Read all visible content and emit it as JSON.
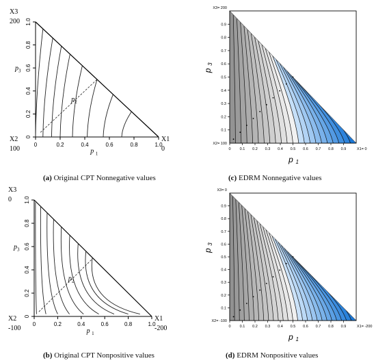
{
  "panels": [
    {
      "id": "a",
      "caption_letter": "(a)",
      "caption_text": "Original CPT Nonnegative values",
      "chart_data": {
        "type": "ternary-indifference-curves",
        "title": "",
        "xlabel": "p1",
        "ylabel": "p3",
        "xlim": [
          0,
          1
        ],
        "ylim": [
          0,
          1
        ],
        "x_ticks": [
          "0",
          "0.2",
          "0.4",
          "0.6",
          "0.8",
          "1.0"
        ],
        "y_ticks": [
          "0",
          "0.2",
          "0.4",
          "0.6",
          "0.8",
          "1.0"
        ],
        "corner_labels": {
          "top": [
            "X3",
            "200"
          ],
          "bottom_left": [
            "X2",
            "100"
          ],
          "bottom_right": [
            "X1",
            "0"
          ]
        },
        "diagonal_label": "p2",
        "curve_count": 8,
        "shading": "none"
      }
    },
    {
      "id": "b",
      "caption_letter": "(b)",
      "caption_text": "Original CPT Nonpositive values",
      "chart_data": {
        "type": "ternary-indifference-curves",
        "title": "",
        "xlabel": "p1",
        "ylabel": "p3",
        "xlim": [
          0,
          1
        ],
        "ylim": [
          0,
          1
        ],
        "x_ticks": [
          "0",
          "0.2",
          "0.4",
          "0.6",
          "0.8",
          "1.0"
        ],
        "y_ticks": [
          "0",
          "0.2",
          "0.4",
          "0.6",
          "0.8",
          "1.0"
        ],
        "corner_labels": {
          "top": [
            "X3",
            "0"
          ],
          "bottom_left": [
            "X2",
            "-100"
          ],
          "bottom_right": [
            "X1",
            "-200"
          ]
        },
        "diagonal_label": "p2",
        "curve_count": 9,
        "shading": "none"
      }
    },
    {
      "id": "c",
      "caption_letter": "(c)",
      "caption_text": "EDRM Nonnegative values",
      "chart_data": {
        "type": "ternary-contour",
        "title": "",
        "xlabel": "p1",
        "ylabel": "p3",
        "xlim": [
          0,
          1
        ],
        "ylim": [
          0,
          1
        ],
        "x_ticks": [
          "0",
          "0.1",
          "0.2",
          "0.3",
          "0.4",
          "0.5",
          "0.6",
          "0.7",
          "0.8",
          "0.9"
        ],
        "y_ticks": [
          "0.1",
          "0.2",
          "0.3",
          "0.4",
          "0.5",
          "0.6",
          "0.7",
          "0.8",
          "0.9"
        ],
        "corner_labels": {
          "top": "X3= 200",
          "bottom_left": "X2= 100",
          "bottom_right": "X1= 0"
        },
        "dotted_line": {
          "x": [
            0.03,
            0.5
          ],
          "y": [
            0.03,
            0.5
          ]
        },
        "contour_count": 22,
        "shading": "gray-to-blue",
        "colors": {
          "gray_light": "#f2f2f2",
          "gray_dark": "#8a8a8a",
          "blue_light": "#d6e9fb",
          "blue_dark": "#1a78d8"
        }
      }
    },
    {
      "id": "d",
      "caption_letter": "(d)",
      "caption_text": "EDRM Nonpositive values",
      "chart_data": {
        "type": "ternary-contour",
        "title": "",
        "xlabel": "p1",
        "ylabel": "p3",
        "xlim": [
          0,
          1
        ],
        "ylim": [
          0,
          1
        ],
        "x_ticks": [
          "0",
          "0.1",
          "0.2",
          "0.3",
          "0.4",
          "0.5",
          "0.6",
          "0.7",
          "0.8",
          "0.9"
        ],
        "y_ticks": [
          "0.1",
          "0.2",
          "0.3",
          "0.4",
          "0.5",
          "0.6",
          "0.7",
          "0.8",
          "0.9"
        ],
        "corner_labels": {
          "top": "X3= 0",
          "bottom_left": "X2= -100",
          "bottom_right": "X1= -200"
        },
        "dotted_line": {
          "x": [
            0.03,
            0.5
          ],
          "y": [
            0.03,
            0.5
          ]
        },
        "contour_count": 26,
        "shading": "gray-to-blue",
        "colors": {
          "gray_light": "#f2f2f2",
          "gray_dark": "#8a8a8a",
          "blue_light": "#d6e9fb",
          "blue_dark": "#1a78d8"
        }
      }
    }
  ]
}
